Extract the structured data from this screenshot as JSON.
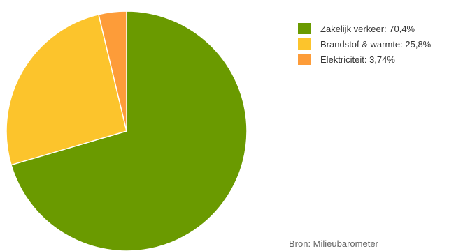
{
  "chart_data": {
    "type": "pie",
    "categories": [
      "Zakelijk verkeer",
      "Brandstof & warmte",
      "Elektriciteit"
    ],
    "values": [
      70.4,
      25.8,
      3.74
    ],
    "colors": [
      "#6a9a00",
      "#fcc42c",
      "#fd9c39"
    ],
    "legend": [
      "Zakelijk verkeer: 70,4%",
      "Brandstof & warmte: 25,8%",
      "Elektriciteit: 3,74%"
    ],
    "legend_position": "top-right",
    "source": "Bron: Milieubarometer"
  }
}
